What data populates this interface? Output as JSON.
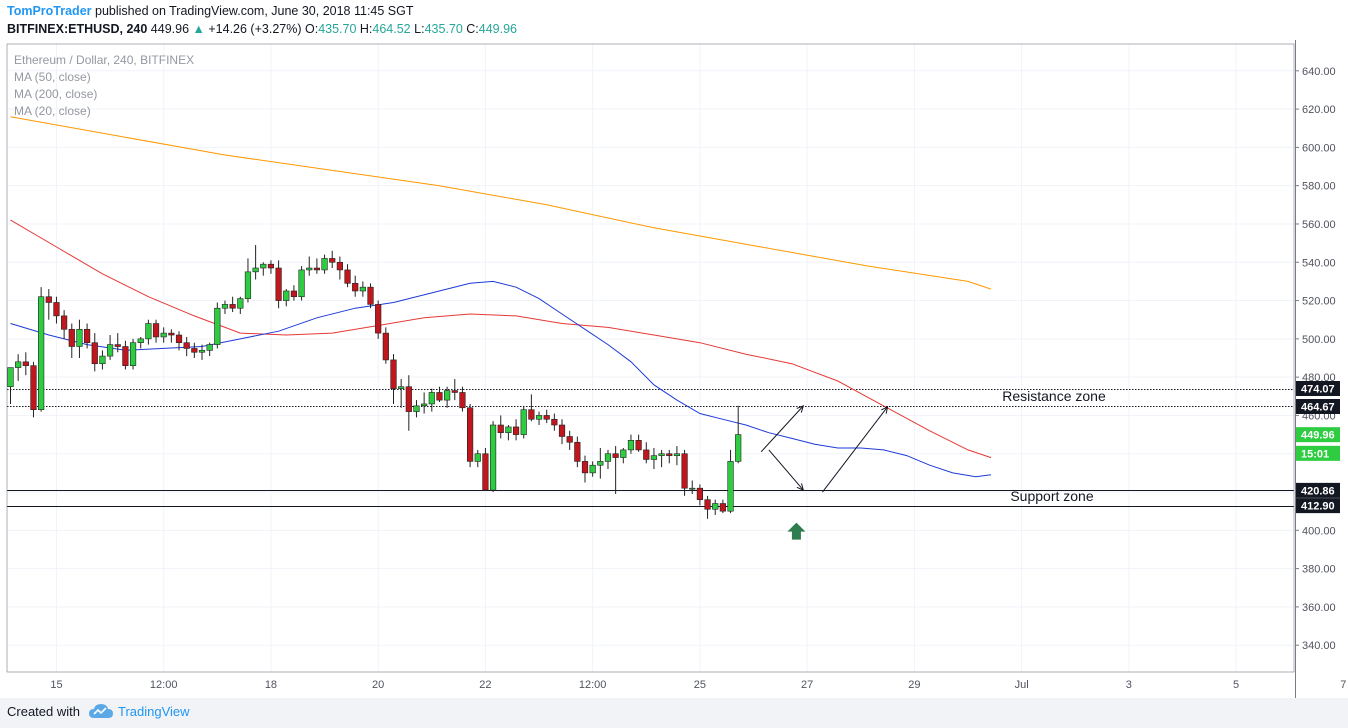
{
  "header": {
    "author": "TomProTrader",
    "published_text": "published on TradingView.com, June 30, 2018 11:45 SGT",
    "symbol": "BITFINEX:ETHUSD, 240",
    "last": "449.96",
    "change": "+14.26 (+3.27%)",
    "o_label": "O:",
    "o_value": "435.70",
    "h_label": "H:",
    "h_value": "464.52",
    "l_label": "L:",
    "l_value": "435.70",
    "c_label": "C:",
    "c_value": "449.96"
  },
  "legend": {
    "title": "Ethereum / Dollar, 240, BITFINEX",
    "ma1": "MA (50, close)",
    "ma2": "MA (200, close)",
    "ma3": "MA (20, close)"
  },
  "footer": {
    "created_with": "Created with",
    "brand": "TradingView"
  },
  "chart_data": {
    "type": "candlestick",
    "symbol": "BITFINEX:ETHUSD",
    "interval": "240",
    "ylim": [
      326,
      654
    ],
    "y_ticks": [
      "340.00",
      "360.00",
      "380.00",
      "400.00",
      "420.00",
      "440.00",
      "460.00",
      "480.00",
      "500.00",
      "520.00",
      "540.00",
      "560.00",
      "580.00",
      "600.00",
      "620.00",
      "640.00"
    ],
    "x_ticks": [
      "15",
      "12:00",
      "18",
      "20",
      "22",
      "12:00",
      "25",
      "27",
      "29",
      "Jul",
      "3",
      "5",
      "7"
    ],
    "x_tick_positions_bars": [
      6,
      20,
      34,
      48,
      62,
      76,
      90,
      104,
      118,
      132,
      146,
      160,
      174
    ],
    "candles": [
      {
        "o": 475,
        "h": 482,
        "l": 466,
        "c": 485
      },
      {
        "o": 485,
        "h": 492,
        "l": 478,
        "c": 488
      },
      {
        "o": 488,
        "h": 493,
        "l": 481,
        "c": 486
      },
      {
        "o": 486,
        "h": 488,
        "l": 459,
        "c": 463
      },
      {
        "o": 463,
        "h": 527,
        "l": 462,
        "c": 522
      },
      {
        "o": 522,
        "h": 526,
        "l": 510,
        "c": 519
      },
      {
        "o": 519,
        "h": 522,
        "l": 508,
        "c": 512
      },
      {
        "o": 512,
        "h": 515,
        "l": 500,
        "c": 505
      },
      {
        "o": 505,
        "h": 508,
        "l": 490,
        "c": 496
      },
      {
        "o": 496,
        "h": 510,
        "l": 490,
        "c": 505
      },
      {
        "o": 505,
        "h": 508,
        "l": 495,
        "c": 498
      },
      {
        "o": 498,
        "h": 503,
        "l": 483,
        "c": 487
      },
      {
        "o": 487,
        "h": 494,
        "l": 484,
        "c": 491
      },
      {
        "o": 491,
        "h": 502,
        "l": 489,
        "c": 497
      },
      {
        "o": 497,
        "h": 503,
        "l": 493,
        "c": 496
      },
      {
        "o": 496,
        "h": 499,
        "l": 484,
        "c": 486
      },
      {
        "o": 486,
        "h": 500,
        "l": 484,
        "c": 498
      },
      {
        "o": 498,
        "h": 501,
        "l": 495,
        "c": 500
      },
      {
        "o": 500,
        "h": 510,
        "l": 497,
        "c": 508
      },
      {
        "o": 508,
        "h": 510,
        "l": 498,
        "c": 501
      },
      {
        "o": 501,
        "h": 506,
        "l": 498,
        "c": 503
      },
      {
        "o": 503,
        "h": 505,
        "l": 498,
        "c": 502
      },
      {
        "o": 502,
        "h": 504,
        "l": 494,
        "c": 498
      },
      {
        "o": 498,
        "h": 501,
        "l": 491,
        "c": 495
      },
      {
        "o": 495,
        "h": 498,
        "l": 490,
        "c": 493
      },
      {
        "o": 493,
        "h": 497,
        "l": 489,
        "c": 494
      },
      {
        "o": 494,
        "h": 498,
        "l": 491,
        "c": 497
      },
      {
        "o": 497,
        "h": 519,
        "l": 495,
        "c": 516
      },
      {
        "o": 516,
        "h": 520,
        "l": 513,
        "c": 518
      },
      {
        "o": 518,
        "h": 522,
        "l": 514,
        "c": 516
      },
      {
        "o": 516,
        "h": 522,
        "l": 513,
        "c": 521
      },
      {
        "o": 521,
        "h": 542,
        "l": 519,
        "c": 535
      },
      {
        "o": 535,
        "h": 549,
        "l": 531,
        "c": 537
      },
      {
        "o": 537,
        "h": 540,
        "l": 533,
        "c": 539
      },
      {
        "o": 539,
        "h": 541,
        "l": 534,
        "c": 537
      },
      {
        "o": 537,
        "h": 541,
        "l": 516,
        "c": 520
      },
      {
        "o": 520,
        "h": 526,
        "l": 517,
        "c": 525
      },
      {
        "o": 525,
        "h": 528,
        "l": 520,
        "c": 522
      },
      {
        "o": 522,
        "h": 538,
        "l": 520,
        "c": 536
      },
      {
        "o": 536,
        "h": 543,
        "l": 533,
        "c": 537
      },
      {
        "o": 537,
        "h": 542,
        "l": 534,
        "c": 536
      },
      {
        "o": 536,
        "h": 544,
        "l": 534,
        "c": 542
      },
      {
        "o": 542,
        "h": 546,
        "l": 537,
        "c": 540
      },
      {
        "o": 540,
        "h": 543,
        "l": 531,
        "c": 536
      },
      {
        "o": 536,
        "h": 539,
        "l": 527,
        "c": 529
      },
      {
        "o": 529,
        "h": 533,
        "l": 522,
        "c": 525
      },
      {
        "o": 525,
        "h": 530,
        "l": 522,
        "c": 527
      },
      {
        "o": 527,
        "h": 529,
        "l": 516,
        "c": 518
      },
      {
        "o": 518,
        "h": 520,
        "l": 500,
        "c": 503
      },
      {
        "o": 503,
        "h": 506,
        "l": 487,
        "c": 489
      },
      {
        "o": 489,
        "h": 492,
        "l": 466,
        "c": 474
      },
      {
        "o": 474,
        "h": 479,
        "l": 464,
        "c": 475
      },
      {
        "o": 475,
        "h": 481,
        "l": 452,
        "c": 462
      },
      {
        "o": 462,
        "h": 468,
        "l": 459,
        "c": 465
      },
      {
        "o": 465,
        "h": 472,
        "l": 461,
        "c": 466
      },
      {
        "o": 466,
        "h": 474,
        "l": 462,
        "c": 472
      },
      {
        "o": 472,
        "h": 475,
        "l": 467,
        "c": 468
      },
      {
        "o": 468,
        "h": 475,
        "l": 464,
        "c": 473
      },
      {
        "o": 473,
        "h": 479,
        "l": 468,
        "c": 472
      },
      {
        "o": 472,
        "h": 475,
        "l": 462,
        "c": 464
      },
      {
        "o": 464,
        "h": 466,
        "l": 433,
        "c": 436
      },
      {
        "o": 436,
        "h": 442,
        "l": 433,
        "c": 440
      },
      {
        "o": 440,
        "h": 443,
        "l": 421,
        "c": 421
      },
      {
        "o": 421,
        "h": 457,
        "l": 420,
        "c": 455
      },
      {
        "o": 455,
        "h": 460,
        "l": 448,
        "c": 451
      },
      {
        "o": 451,
        "h": 455,
        "l": 447,
        "c": 454
      },
      {
        "o": 454,
        "h": 458,
        "l": 447,
        "c": 450
      },
      {
        "o": 450,
        "h": 465,
        "l": 448,
        "c": 463
      },
      {
        "o": 463,
        "h": 471,
        "l": 457,
        "c": 458
      },
      {
        "o": 458,
        "h": 462,
        "l": 455,
        "c": 460
      },
      {
        "o": 460,
        "h": 463,
        "l": 456,
        "c": 458
      },
      {
        "o": 458,
        "h": 461,
        "l": 452,
        "c": 455
      },
      {
        "o": 455,
        "h": 458,
        "l": 445,
        "c": 449
      },
      {
        "o": 449,
        "h": 452,
        "l": 442,
        "c": 446
      },
      {
        "o": 446,
        "h": 449,
        "l": 433,
        "c": 436
      },
      {
        "o": 436,
        "h": 439,
        "l": 425,
        "c": 430
      },
      {
        "o": 430,
        "h": 436,
        "l": 428,
        "c": 434
      },
      {
        "o": 434,
        "h": 443,
        "l": 427,
        "c": 436
      },
      {
        "o": 436,
        "h": 442,
        "l": 432,
        "c": 440
      },
      {
        "o": 440,
        "h": 444,
        "l": 419,
        "c": 438
      },
      {
        "o": 438,
        "h": 443,
        "l": 435,
        "c": 442
      },
      {
        "o": 442,
        "h": 450,
        "l": 440,
        "c": 447
      },
      {
        "o": 447,
        "h": 450,
        "l": 441,
        "c": 442
      },
      {
        "o": 442,
        "h": 446,
        "l": 435,
        "c": 437
      },
      {
        "o": 437,
        "h": 443,
        "l": 432,
        "c": 439
      },
      {
        "o": 439,
        "h": 442,
        "l": 433,
        "c": 440
      },
      {
        "o": 440,
        "h": 442,
        "l": 435,
        "c": 439
      },
      {
        "o": 439,
        "h": 444,
        "l": 434,
        "c": 440
      },
      {
        "o": 440,
        "h": 442,
        "l": 418,
        "c": 422
      },
      {
        "o": 422,
        "h": 426,
        "l": 419,
        "c": 422
      },
      {
        "o": 422,
        "h": 424,
        "l": 413,
        "c": 416
      },
      {
        "o": 416,
        "h": 418,
        "l": 406,
        "c": 411
      },
      {
        "o": 411,
        "h": 416,
        "l": 408,
        "c": 414
      },
      {
        "o": 414,
        "h": 416,
        "l": 409,
        "c": 410
      },
      {
        "o": 410,
        "h": 442,
        "l": 409,
        "c": 436
      },
      {
        "o": 436,
        "h": 465,
        "l": 435,
        "c": 450
      }
    ],
    "moving_averages": [
      {
        "name": "MA (200, close)",
        "color": "#ff9800",
        "points": [
          [
            0,
            616
          ],
          [
            14,
            606
          ],
          [
            28,
            596
          ],
          [
            42,
            588
          ],
          [
            56,
            580
          ],
          [
            70,
            570
          ],
          [
            84,
            558
          ],
          [
            98,
            548
          ],
          [
            112,
            538
          ],
          [
            125,
            530
          ],
          [
            128,
            526
          ]
        ]
      },
      {
        "name": "MA (50, close)",
        "color": "#e53935",
        "points": [
          [
            0,
            562
          ],
          [
            6,
            548
          ],
          [
            12,
            534
          ],
          [
            18,
            522
          ],
          [
            24,
            512
          ],
          [
            30,
            503
          ],
          [
            36,
            502
          ],
          [
            42,
            503
          ],
          [
            48,
            507
          ],
          [
            54,
            511
          ],
          [
            60,
            513
          ],
          [
            66,
            512
          ],
          [
            72,
            508
          ],
          [
            78,
            506
          ],
          [
            84,
            502
          ],
          [
            90,
            498
          ],
          [
            96,
            492
          ],
          [
            102,
            487
          ],
          [
            108,
            478
          ],
          [
            114,
            465
          ],
          [
            120,
            452
          ],
          [
            125,
            442
          ],
          [
            128,
            438
          ]
        ]
      },
      {
        "name": "MA (20, close)",
        "color": "#1e3ad8",
        "points": [
          [
            0,
            508
          ],
          [
            5,
            502
          ],
          [
            10,
            497
          ],
          [
            15,
            494
          ],
          [
            20,
            495
          ],
          [
            25,
            496
          ],
          [
            30,
            500
          ],
          [
            35,
            504
          ],
          [
            40,
            511
          ],
          [
            45,
            516
          ],
          [
            50,
            519
          ],
          [
            55,
            524
          ],
          [
            60,
            529
          ],
          [
            63,
            530
          ],
          [
            66,
            527
          ],
          [
            69,
            521
          ],
          [
            72,
            513
          ],
          [
            75,
            505
          ],
          [
            78,
            497
          ],
          [
            81,
            488
          ],
          [
            84,
            476
          ],
          [
            87,
            468
          ],
          [
            90,
            461
          ],
          [
            93,
            458
          ],
          [
            96,
            455
          ],
          [
            99,
            451
          ],
          [
            102,
            448
          ],
          [
            105,
            445
          ],
          [
            108,
            443
          ],
          [
            111,
            443
          ],
          [
            114,
            442
          ],
          [
            117,
            439
          ],
          [
            120,
            434
          ],
          [
            123,
            430
          ],
          [
            126,
            428
          ],
          [
            128,
            429
          ]
        ]
      }
    ],
    "price_lines": [
      {
        "label": "474.07",
        "value": 474.07,
        "style": "dotted",
        "annotation": "Resistance zone"
      },
      {
        "label": "464.67",
        "value": 464.67,
        "style": "dotted"
      },
      {
        "label": "420.86",
        "value": 420.86,
        "style": "solid",
        "annotation": "Support zone"
      },
      {
        "label": "412.90",
        "value": 412.9,
        "style": "solid"
      }
    ],
    "last_price_label": "449.96",
    "countdown_label": "15:01",
    "annotations": {
      "resistance": "Resistance zone",
      "support": "Support zone"
    },
    "colors": {
      "up": "#2ecc40",
      "down": "#c0161d",
      "grid": "#f0f3fa",
      "ma50": "#e53935",
      "ma200": "#ff9800",
      "ma20": "#1e3ad8",
      "arrow": "#2e7d4f"
    }
  }
}
